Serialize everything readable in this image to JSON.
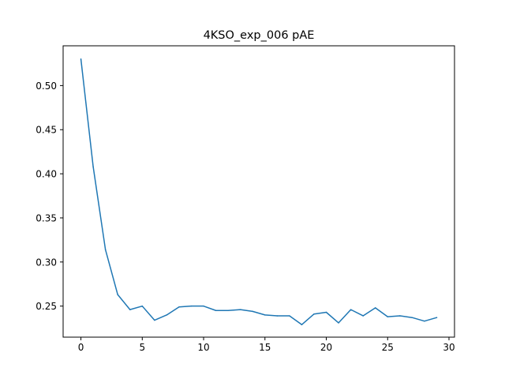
{
  "chart_data": {
    "type": "line",
    "title": "4KSO_exp_006 pAE",
    "xlabel": "",
    "ylabel": "",
    "xlim": [
      -1.45,
      30.45
    ],
    "ylim": [
      0.2148,
      0.5451
    ],
    "grid": false,
    "x_ticks": [
      0,
      5,
      10,
      15,
      20,
      25,
      30
    ],
    "x_tick_labels": [
      "0",
      "5",
      "10",
      "15",
      "20",
      "25",
      "30"
    ],
    "y_ticks": [
      0.25,
      0.3,
      0.35,
      0.4,
      0.45,
      0.5
    ],
    "y_tick_labels": [
      "0.25",
      "0.30",
      "0.35",
      "0.40",
      "0.45",
      "0.50"
    ],
    "series": [
      {
        "color": "#1f77b4",
        "x": [
          0,
          1,
          2,
          3,
          4,
          5,
          6,
          7,
          8,
          9,
          10,
          11,
          12,
          13,
          14,
          15,
          16,
          17,
          18,
          19,
          20,
          21,
          22,
          23,
          24,
          25,
          26,
          27,
          28,
          29
        ],
        "values": [
          0.53,
          0.408,
          0.314,
          0.263,
          0.246,
          0.25,
          0.234,
          0.24,
          0.249,
          0.25,
          0.25,
          0.245,
          0.245,
          0.246,
          0.244,
          0.24,
          0.239,
          0.239,
          0.229,
          0.241,
          0.243,
          0.231,
          0.246,
          0.239,
          0.248,
          0.238,
          0.239,
          0.237,
          0.233,
          0.237
        ]
      }
    ]
  }
}
